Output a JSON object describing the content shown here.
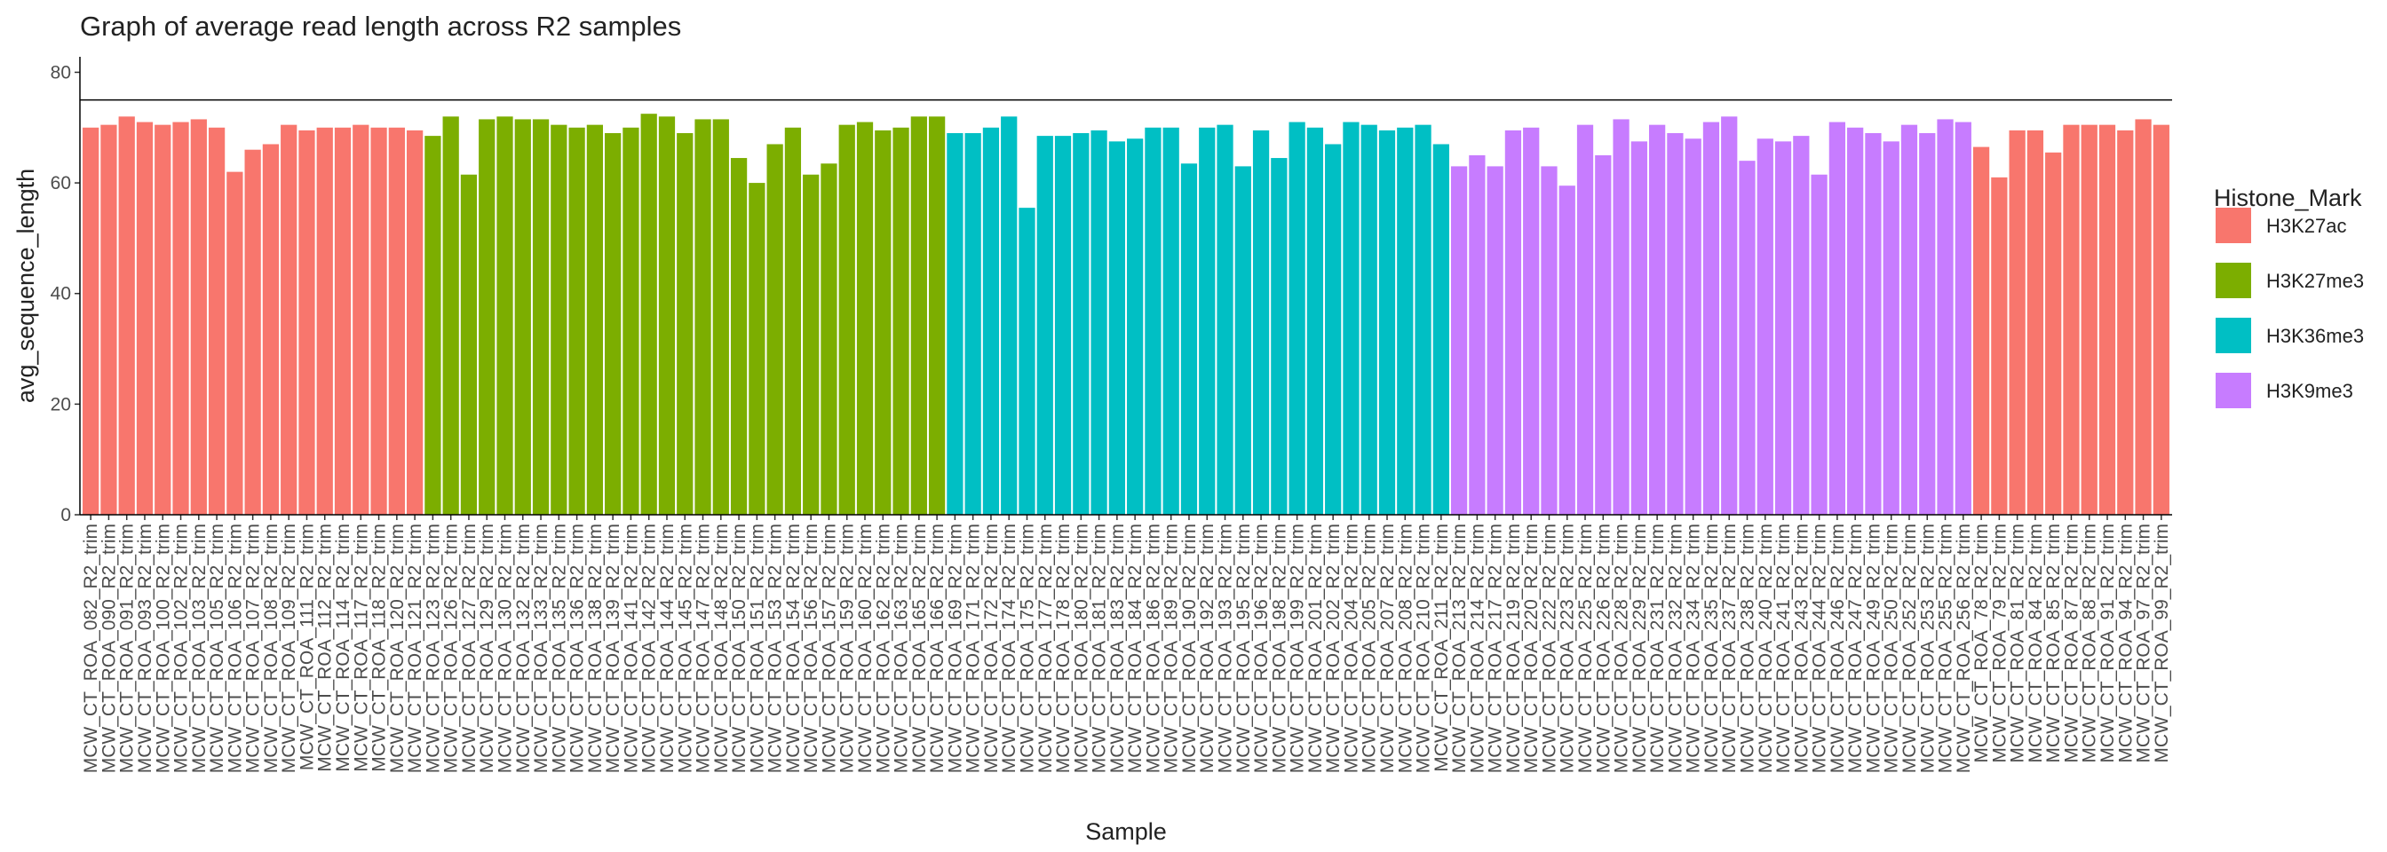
{
  "chart_data": {
    "type": "bar",
    "title": "Graph of average read length across R2 samples",
    "x_label": "Sample",
    "y_label": "avg_sequence_length",
    "legend_title": "Histone_Mark",
    "legend_position": "right",
    "categories": [
      "MCW_CT_ROA_082_R2_trim",
      "MCW_CT_ROA_090_R2_trim",
      "MCW_CT_ROA_091_R2_trim",
      "MCW_CT_ROA_093_R2_trim",
      "MCW_CT_ROA_100_R2_trim",
      "MCW_CT_ROA_102_R2_trim",
      "MCW_CT_ROA_103_R2_trim",
      "MCW_CT_ROA_105_R2_trim",
      "MCW_CT_ROA_106_R2_trim",
      "MCW_CT_ROA_107_R2_trim",
      "MCW_CT_ROA_108_R2_trim",
      "MCW_CT_ROA_109_R2_trim",
      "MCW_CT_ROA_111_R2_trim",
      "MCW_CT_ROA_112_R2_trim",
      "MCW_CT_ROA_114_R2_trim",
      "MCW_CT_ROA_117_R2_trim",
      "MCW_CT_ROA_118_R2_trim",
      "MCW_CT_ROA_120_R2_trim",
      "MCW_CT_ROA_121_R2_trim",
      "MCW_CT_ROA_123_R2_trim",
      "MCW_CT_ROA_126_R2_trim",
      "MCW_CT_ROA_127_R2_trim",
      "MCW_CT_ROA_129_R2_trim",
      "MCW_CT_ROA_130_R2_trim",
      "MCW_CT_ROA_132_R2_trim",
      "MCW_CT_ROA_133_R2_trim",
      "MCW_CT_ROA_135_R2_trim",
      "MCW_CT_ROA_136_R2_trim",
      "MCW_CT_ROA_138_R2_trim",
      "MCW_CT_ROA_139_R2_trim",
      "MCW_CT_ROA_141_R2_trim",
      "MCW_CT_ROA_142_R2_trim",
      "MCW_CT_ROA_144_R2_trim",
      "MCW_CT_ROA_145_R2_trim",
      "MCW_CT_ROA_147_R2_trim",
      "MCW_CT_ROA_148_R2_trim",
      "MCW_CT_ROA_150_R2_trim",
      "MCW_CT_ROA_151_R2_trim",
      "MCW_CT_ROA_153_R2_trim",
      "MCW_CT_ROA_154_R2_trim",
      "MCW_CT_ROA_156_R2_trim",
      "MCW_CT_ROA_157_R2_trim",
      "MCW_CT_ROA_159_R2_trim",
      "MCW_CT_ROA_160_R2_trim",
      "MCW_CT_ROA_162_R2_trim",
      "MCW_CT_ROA_163_R2_trim",
      "MCW_CT_ROA_165_R2_trim",
      "MCW_CT_ROA_166_R2_trim",
      "MCW_CT_ROA_169_R2_trim",
      "MCW_CT_ROA_171_R2_trim",
      "MCW_CT_ROA_172_R2_trim",
      "MCW_CT_ROA_174_R2_trim",
      "MCW_CT_ROA_175_R2_trim",
      "MCW_CT_ROA_177_R2_trim",
      "MCW_CT_ROA_178_R2_trim",
      "MCW_CT_ROA_180_R2_trim",
      "MCW_CT_ROA_181_R2_trim",
      "MCW_CT_ROA_183_R2_trim",
      "MCW_CT_ROA_184_R2_trim",
      "MCW_CT_ROA_186_R2_trim",
      "MCW_CT_ROA_189_R2_trim",
      "MCW_CT_ROA_190_R2_trim",
      "MCW_CT_ROA_192_R2_trim",
      "MCW_CT_ROA_193_R2_trim",
      "MCW_CT_ROA_195_R2_trim",
      "MCW_CT_ROA_196_R2_trim",
      "MCW_CT_ROA_198_R2_trim",
      "MCW_CT_ROA_199_R2_trim",
      "MCW_CT_ROA_201_R2_trim",
      "MCW_CT_ROA_202_R2_trim",
      "MCW_CT_ROA_204_R2_trim",
      "MCW_CT_ROA_205_R2_trim",
      "MCW_CT_ROA_207_R2_trim",
      "MCW_CT_ROA_208_R2_trim",
      "MCW_CT_ROA_210_R2_trim",
      "MCW_CT_ROA_211_R2_trim",
      "MCW_CT_ROA_213_R2_trim",
      "MCW_CT_ROA_214_R2_trim",
      "MCW_CT_ROA_217_R2_trim",
      "MCW_CT_ROA_219_R2_trim",
      "MCW_CT_ROA_220_R2_trim",
      "MCW_CT_ROA_222_R2_trim",
      "MCW_CT_ROA_223_R2_trim",
      "MCW_CT_ROA_225_R2_trim",
      "MCW_CT_ROA_226_R2_trim",
      "MCW_CT_ROA_228_R2_trim",
      "MCW_CT_ROA_229_R2_trim",
      "MCW_CT_ROA_231_R2_trim",
      "MCW_CT_ROA_232_R2_trim",
      "MCW_CT_ROA_234_R2_trim",
      "MCW_CT_ROA_235_R2_trim",
      "MCW_CT_ROA_237_R2_trim",
      "MCW_CT_ROA_238_R2_trim",
      "MCW_CT_ROA_240_R2_trim",
      "MCW_CT_ROA_241_R2_trim",
      "MCW_CT_ROA_243_R2_trim",
      "MCW_CT_ROA_244_R2_trim",
      "MCW_CT_ROA_246_R2_trim",
      "MCW_CT_ROA_247_R2_trim",
      "MCW_CT_ROA_249_R2_trim",
      "MCW_CT_ROA_250_R2_trim",
      "MCW_CT_ROA_252_R2_trim",
      "MCW_CT_ROA_253_R2_trim",
      "MCW_CT_ROA_255_R2_trim",
      "MCW_CT_ROA_256_R2_trim",
      "MCW_CT_ROA_78_R2_trim",
      "MCW_CT_ROA_79_R2_trim",
      "MCW_CT_ROA_81_R2_trim",
      "MCW_CT_ROA_84_R2_trim",
      "MCW_CT_ROA_85_R2_trim",
      "MCW_CT_ROA_87_R2_trim",
      "MCW_CT_ROA_88_R2_trim",
      "MCW_CT_ROA_91_R2_trim",
      "MCW_CT_ROA_94_R2_trim",
      "MCW_CT_ROA_97_R2_trim",
      "MCW_CT_ROA_99_R2_trim"
    ],
    "series": [
      {
        "name": "H3K27ac",
        "color": "#f8766d",
        "values": [
          70,
          70.5,
          72,
          71,
          70.5,
          71,
          71.5,
          70,
          62,
          66,
          67,
          70.5,
          69.5,
          70,
          70,
          70.5,
          70,
          70,
          69.5,
          null,
          null,
          null,
          null,
          null,
          null,
          null,
          null,
          null,
          null,
          null,
          null,
          null,
          null,
          null,
          null,
          null,
          null,
          null,
          null,
          null,
          null,
          null,
          null,
          null,
          null,
          null,
          null,
          null,
          null,
          null,
          null,
          null,
          null,
          null,
          null,
          null,
          null,
          null,
          null,
          null,
          null,
          null,
          null,
          null,
          null,
          null,
          null,
          null,
          null,
          null,
          null,
          null,
          null,
          null,
          null,
          null,
          null,
          null,
          null,
          null,
          null,
          null,
          null,
          null,
          null,
          null,
          null,
          null,
          null,
          null,
          null,
          null,
          null,
          null,
          null,
          null,
          null,
          null,
          null,
          null,
          null,
          null,
          null,
          null,
          null,
          66.5,
          61,
          69.5,
          69.5,
          65.5,
          70.5,
          70.5,
          70.5,
          69.5,
          71.5,
          70.5
        ]
      },
      {
        "name": "H3K27me3",
        "color": "#7cae00",
        "values": [
          null,
          null,
          null,
          null,
          null,
          null,
          null,
          null,
          null,
          null,
          null,
          null,
          null,
          null,
          null,
          null,
          null,
          null,
          null,
          68.5,
          72,
          61.5,
          71.5,
          72,
          71.5,
          71.5,
          70.5,
          70,
          70.5,
          69,
          70,
          72.5,
          72,
          69,
          71.5,
          71.5,
          64.5,
          60,
          67,
          70,
          61.5,
          63.5,
          70.5,
          71,
          69.5,
          70,
          72,
          72,
          null,
          null,
          null,
          null,
          null,
          null,
          null,
          null,
          null,
          null,
          null,
          null,
          null,
          null,
          null,
          null,
          null,
          null,
          null,
          null,
          null,
          null,
          null,
          null,
          null,
          null,
          null,
          null,
          null,
          null,
          null,
          null,
          null,
          null,
          null,
          null,
          null,
          null,
          null,
          null,
          null,
          null,
          null,
          null,
          null,
          null,
          null,
          null,
          null,
          null,
          null,
          null,
          null,
          null,
          null,
          null,
          null,
          null,
          null,
          null,
          null,
          null,
          null,
          null,
          null,
          null,
          null,
          null
        ]
      },
      {
        "name": "H3K36me3",
        "color": "#00bfc4",
        "values": [
          null,
          null,
          null,
          null,
          null,
          null,
          null,
          null,
          null,
          null,
          null,
          null,
          null,
          null,
          null,
          null,
          null,
          null,
          null,
          null,
          null,
          null,
          null,
          null,
          null,
          null,
          null,
          null,
          null,
          null,
          null,
          null,
          null,
          null,
          null,
          null,
          null,
          null,
          null,
          null,
          null,
          null,
          null,
          null,
          null,
          null,
          null,
          null,
          69,
          69,
          70,
          72,
          55.5,
          68.5,
          68.5,
          69,
          69.5,
          67.5,
          68,
          70,
          70,
          63.5,
          70,
          70.5,
          63,
          69.5,
          64.5,
          71,
          70,
          67,
          71,
          70.5,
          69.5,
          70,
          70.5,
          67,
          null,
          null,
          null,
          null,
          null,
          null,
          null,
          null,
          null,
          null,
          null,
          null,
          null,
          null,
          null,
          null,
          null,
          null,
          null,
          null,
          null,
          null,
          null,
          null,
          null,
          null,
          null,
          null,
          null,
          null,
          null,
          null,
          null,
          null,
          null,
          null,
          null,
          null,
          null,
          null
        ]
      },
      {
        "name": "H3K9me3",
        "color": "#c77cff",
        "values": [
          null,
          null,
          null,
          null,
          null,
          null,
          null,
          null,
          null,
          null,
          null,
          null,
          null,
          null,
          null,
          null,
          null,
          null,
          null,
          null,
          null,
          null,
          null,
          null,
          null,
          null,
          null,
          null,
          null,
          null,
          null,
          null,
          null,
          null,
          null,
          null,
          null,
          null,
          null,
          null,
          null,
          null,
          null,
          null,
          null,
          null,
          null,
          null,
          null,
          null,
          null,
          null,
          null,
          null,
          null,
          null,
          null,
          null,
          null,
          null,
          null,
          null,
          null,
          null,
          null,
          null,
          null,
          null,
          null,
          null,
          null,
          null,
          null,
          null,
          null,
          null,
          63,
          65,
          63,
          69.5,
          70,
          63,
          59.5,
          70.5,
          65,
          71.5,
          67.5,
          70.5,
          69,
          68,
          71,
          72,
          64,
          68,
          67.5,
          68.5,
          61.5,
          71,
          70,
          69,
          67.5,
          70.5,
          69,
          71.5,
          71,
          null,
          null,
          null,
          null,
          null,
          null,
          null,
          null,
          null,
          null,
          null
        ]
      }
    ],
    "hline": 75,
    "ylim": [
      0,
      82.8
    ],
    "yticks": [
      0,
      20,
      40,
      60,
      80
    ]
  }
}
